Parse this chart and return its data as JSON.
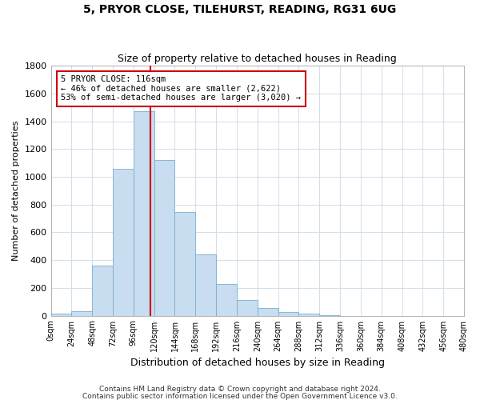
{
  "title": "5, PRYOR CLOSE, TILEHURST, READING, RG31 6UG",
  "subtitle": "Size of property relative to detached houses in Reading",
  "xlabel": "Distribution of detached houses by size in Reading",
  "ylabel": "Number of detached properties",
  "bar_color": "#c8ddef",
  "bar_edge_color": "#7aaecf",
  "bin_edges": [
    0,
    24,
    48,
    72,
    96,
    120,
    144,
    168,
    192,
    216,
    240,
    264,
    288,
    312,
    336,
    360,
    384,
    408,
    432,
    456,
    480
  ],
  "bar_heights": [
    15,
    30,
    360,
    1060,
    1470,
    1120,
    745,
    440,
    230,
    110,
    55,
    25,
    15,
    5,
    0,
    0,
    0,
    0,
    0,
    0
  ],
  "vline_x": 116,
  "vline_color": "#cc0000",
  "annotation_title": "5 PRYOR CLOSE: 116sqm",
  "annotation_line1": "← 46% of detached houses are smaller (2,622)",
  "annotation_line2": "53% of semi-detached houses are larger (3,020) →",
  "annotation_box_color": "#ffffff",
  "annotation_box_edge": "#cc0000",
  "ylim": [
    0,
    1800
  ],
  "yticks": [
    0,
    200,
    400,
    600,
    800,
    1000,
    1200,
    1400,
    1600,
    1800
  ],
  "xtick_labels": [
    "0sqm",
    "24sqm",
    "48sqm",
    "72sqm",
    "96sqm",
    "120sqm",
    "144sqm",
    "168sqm",
    "192sqm",
    "216sqm",
    "240sqm",
    "264sqm",
    "288sqm",
    "312sqm",
    "336sqm",
    "360sqm",
    "384sqm",
    "408sqm",
    "432sqm",
    "456sqm",
    "480sqm"
  ],
  "footer1": "Contains HM Land Registry data © Crown copyright and database right 2024.",
  "footer2": "Contains public sector information licensed under the Open Government Licence v3.0.",
  "background_color": "#ffffff",
  "grid_color": "#ccd8e8"
}
